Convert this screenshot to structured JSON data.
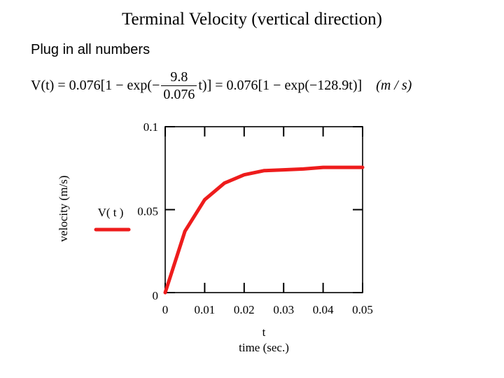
{
  "header": {
    "title": "Terminal Velocity (vertical direction)",
    "subtitle": "Plug in all numbers"
  },
  "equation": {
    "lhs": "V(t) = 0.076[1 − exp(−",
    "frac_num": "9.8",
    "frac_den": "0.076",
    "mid": "t)] = 0.076[1 − exp(−128.9t)]",
    "units": "(m / s)"
  },
  "chart_data": {
    "type": "line",
    "title": "",
    "xlabel": "t",
    "xlabel_sub": "time (sec.)",
    "ylabel": "velocity (m/s)",
    "xlim": [
      0,
      0.05
    ],
    "ylim": [
      0,
      0.1
    ],
    "x_ticks": [
      0,
      0.01,
      0.02,
      0.03,
      0.04,
      0.05
    ],
    "x_tick_labels": [
      "0",
      "0.01",
      "0.02",
      "0.03",
      "0.04",
      "0.05"
    ],
    "y_ticks": [
      0,
      0.05,
      0.1
    ],
    "y_tick_labels": [
      "0",
      "0.05",
      "0.1"
    ],
    "legend": {
      "label": "V( t )",
      "color": "#ee1c1c",
      "placement": "left"
    },
    "series": [
      {
        "name": "V( t )",
        "color": "#ee1c1c",
        "x": [
          0,
          0.005,
          0.01,
          0.015,
          0.02,
          0.025,
          0.03,
          0.035,
          0.04,
          0.045,
          0.05
        ],
        "y": [
          0,
          0.037,
          0.056,
          0.066,
          0.071,
          0.0735,
          0.074,
          0.0745,
          0.0755,
          0.0755,
          0.0755
        ]
      }
    ]
  }
}
